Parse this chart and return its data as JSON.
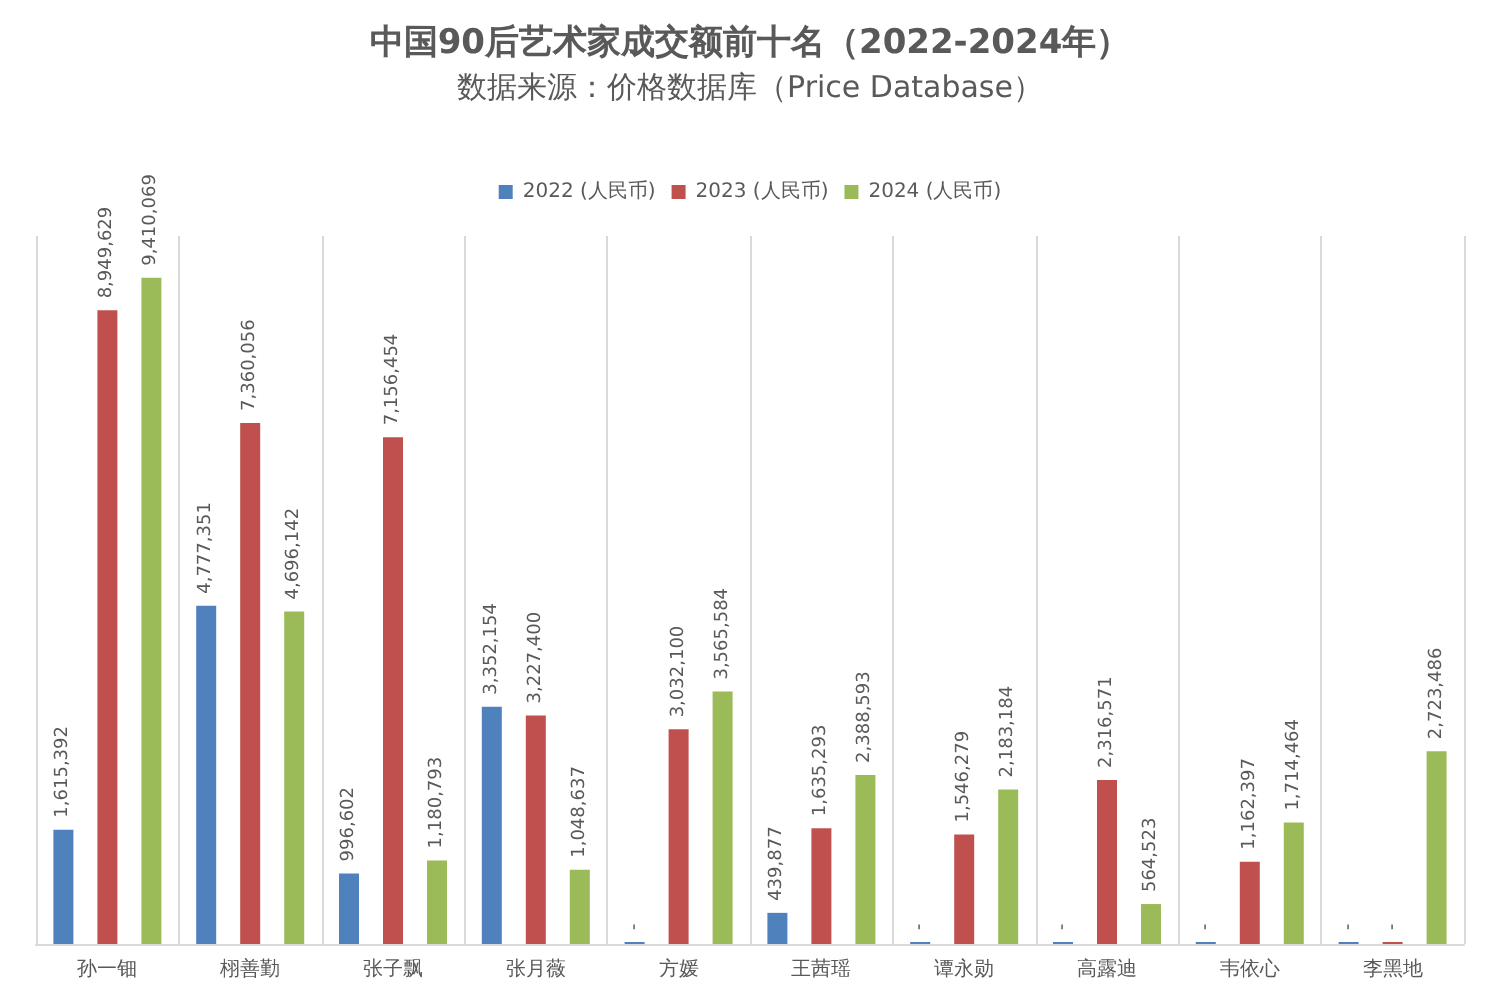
{
  "chart_data": {
    "type": "bar",
    "title": "中国90后艺术家成交额前十名（2022-2024年）",
    "subtitle": "数据来源：价格数据库（Price Database）",
    "categories": [
      "孙一钿",
      "栩善勤",
      "张子飘",
      "张月薇",
      "方媛",
      "王茜瑶",
      "谭永勋",
      "高露迪",
      "韦依心",
      "李黑地"
    ],
    "series": [
      {
        "name": "2022 (人民币)",
        "color": "#4f81bd",
        "values": [
          1615392,
          4777351,
          996602,
          3352154,
          0,
          439877,
          0,
          0,
          0,
          0
        ],
        "value_labels": [
          "1,615,392",
          "4,777,351",
          "996,602",
          "3,352,154",
          "-",
          "439,877",
          "-",
          "-",
          "-",
          "-"
        ]
      },
      {
        "name": "2023 (人民币)",
        "color": "#c0504d",
        "values": [
          8949629,
          7360056,
          7156454,
          3227400,
          3032100,
          1635293,
          1546279,
          2316571,
          1162397,
          0
        ],
        "value_labels": [
          "8,949,629",
          "7,360,056",
          "7,156,454",
          "3,227,400",
          "3,032,100",
          "1,635,293",
          "1,546,279",
          "2,316,571",
          "1,162,397",
          "-"
        ]
      },
      {
        "name": "2024 (人民币)",
        "color": "#9bbb59",
        "values": [
          9410069,
          4696142,
          1180793,
          1048637,
          3565584,
          2388593,
          2183184,
          564523,
          1714464,
          2723486
        ],
        "value_labels": [
          "9,410,069",
          "4,696,142",
          "1,180,793",
          "1,048,637",
          "3,565,584",
          "2,388,593",
          "2,183,184",
          "564,523",
          "1,714,464",
          "2,723,486"
        ]
      }
    ],
    "grid": "x",
    "legend": "top",
    "tick_labels": "x"
  }
}
